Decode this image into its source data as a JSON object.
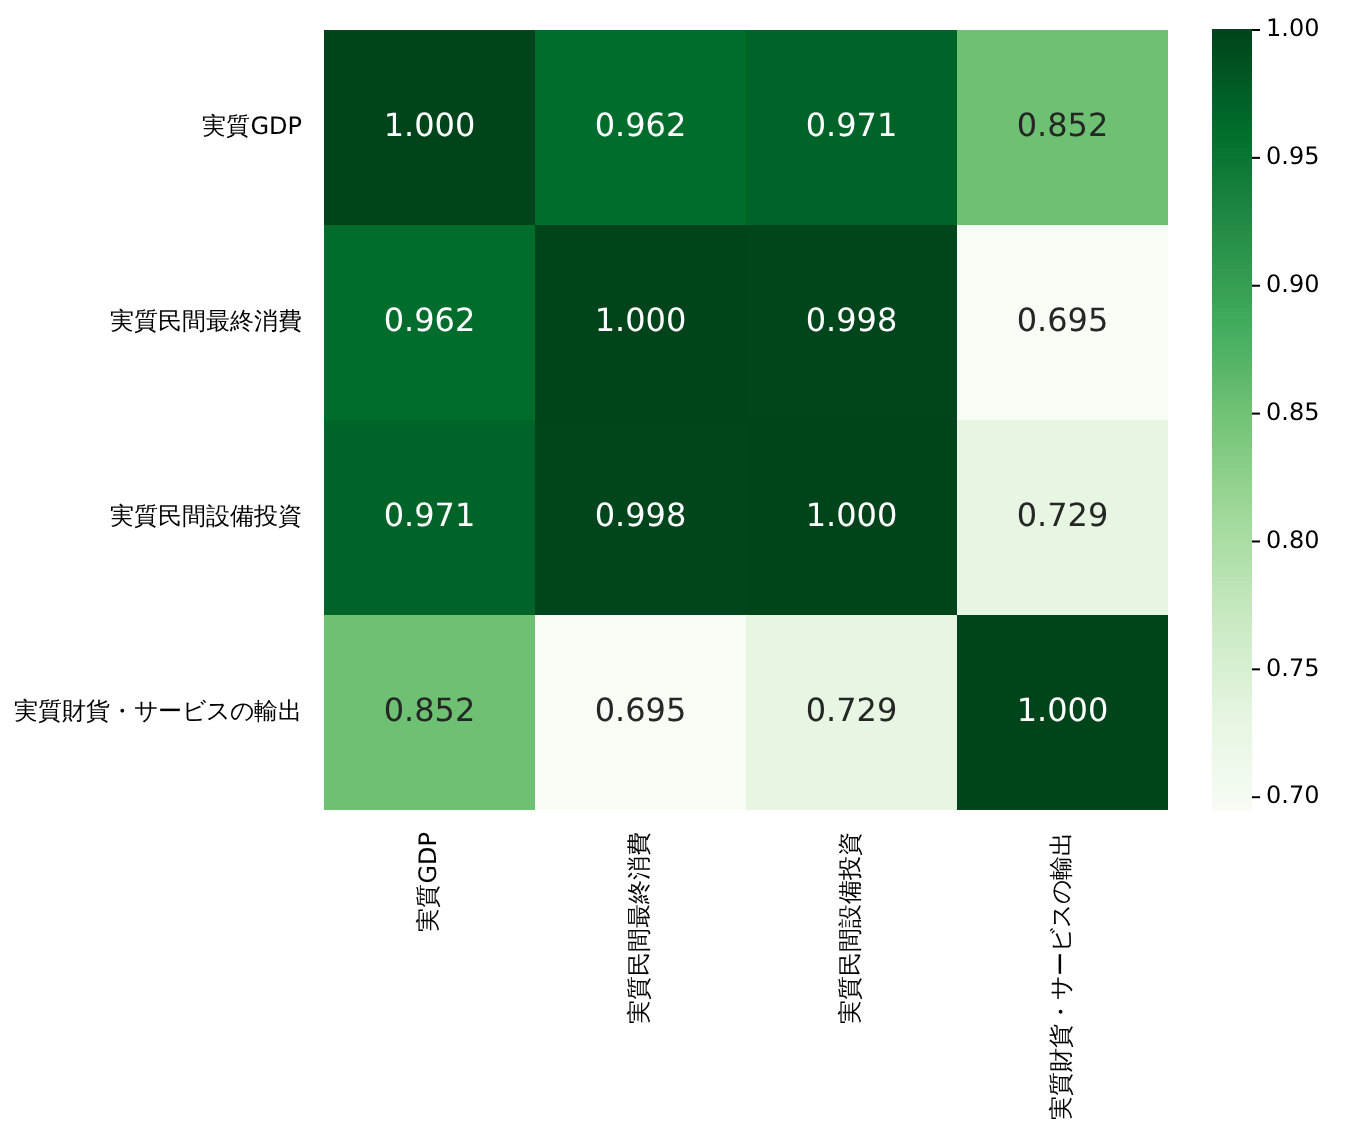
{
  "chart_data": {
    "type": "heatmap",
    "categories": [
      "実質GDP",
      "実質民間最終消費",
      "実質民間設備投資",
      "実質財貨・サービスの輸出"
    ],
    "y_categories": [
      "実質GDP",
      "実質民間最終消費",
      "実質民間設備投資",
      "実質財貨・サービスの輸出"
    ],
    "cells": [
      [
        1.0,
        0.962,
        0.971,
        0.852
      ],
      [
        0.962,
        1.0,
        0.998,
        0.695
      ],
      [
        0.971,
        0.998,
        1.0,
        0.729
      ],
      [
        0.852,
        0.695,
        0.729,
        1.0
      ]
    ],
    "cell_labels": [
      [
        "1.000",
        "0.962",
        "0.971",
        "0.852"
      ],
      [
        "0.962",
        "1.000",
        "0.998",
        "0.695"
      ],
      [
        "0.971",
        "0.998",
        "1.000",
        "0.729"
      ],
      [
        "0.852",
        "0.695",
        "0.729",
        "1.000"
      ]
    ],
    "clim": [
      0.695,
      1.0
    ],
    "cticks": [
      {
        "value": 0.7,
        "label": "0.70"
      },
      {
        "value": 0.75,
        "label": "0.75"
      },
      {
        "value": 0.8,
        "label": "0.80"
      },
      {
        "value": 0.85,
        "label": "0.85"
      },
      {
        "value": 0.9,
        "label": "0.90"
      },
      {
        "value": 0.95,
        "label": "0.95"
      },
      {
        "value": 1.0,
        "label": "1.00"
      }
    ]
  }
}
